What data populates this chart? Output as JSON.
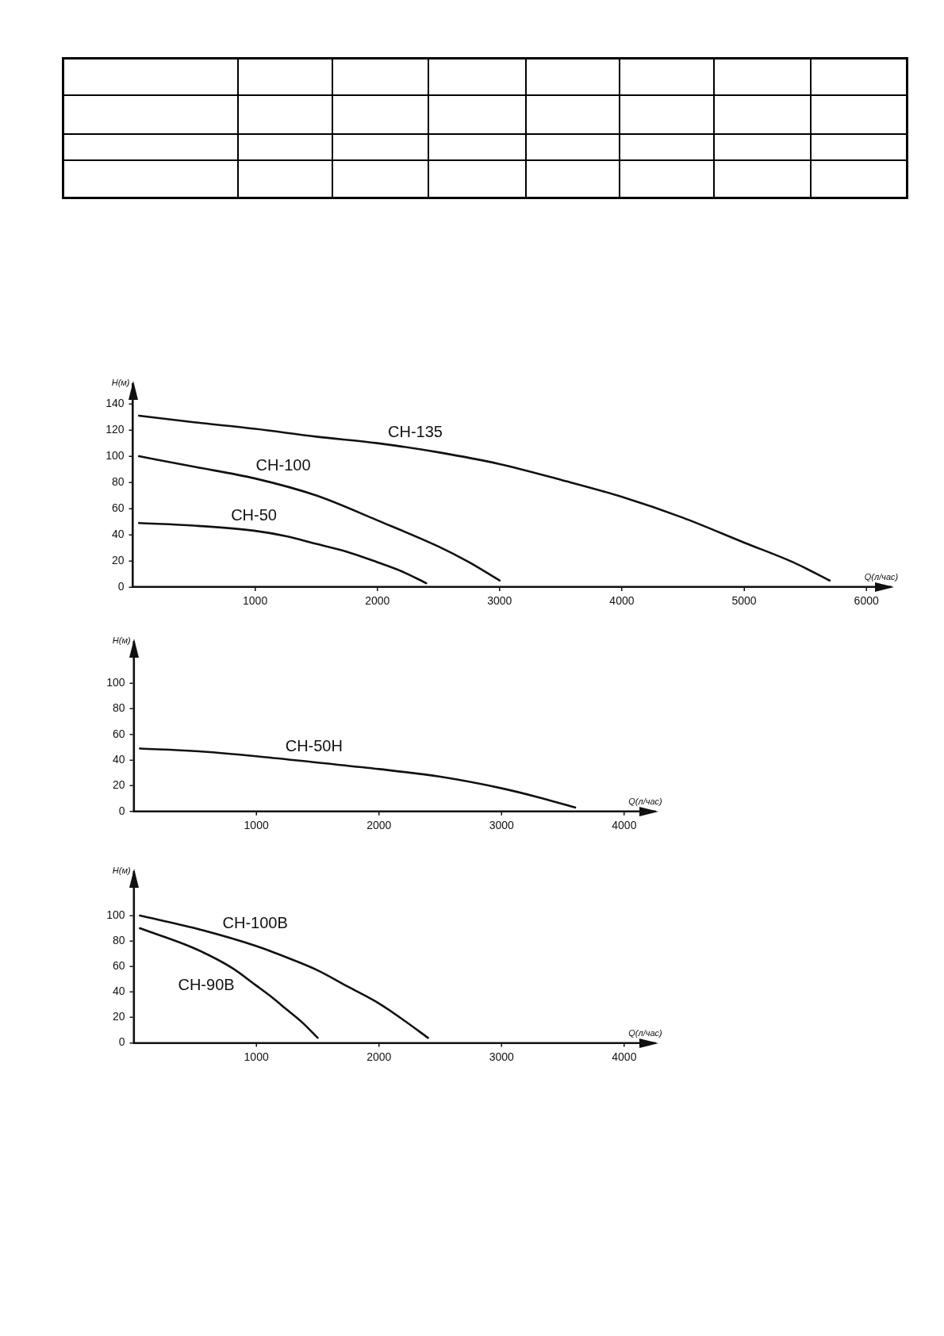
{
  "chart_data": [
    {
      "type": "line",
      "xlabel": "Q(л/час)",
      "ylabel": "H(м)",
      "xlim": [
        0,
        6200
      ],
      "ylim": [
        0,
        155
      ],
      "xticks": [
        1000,
        2000,
        3000,
        4000,
        5000,
        6000
      ],
      "yticks": [
        0,
        20,
        40,
        60,
        80,
        100,
        120,
        140
      ],
      "series": [
        {
          "name": "СН-135",
          "color": "#111111",
          "x": [
            50,
            500,
            1000,
            1500,
            2000,
            2500,
            3000,
            3500,
            4000,
            4500,
            5000,
            5400,
            5700
          ],
          "values": [
            131,
            126,
            121,
            115,
            110,
            103,
            94,
            82,
            69,
            53,
            34,
            19,
            5
          ]
        },
        {
          "name": "СН-100",
          "color": "#111111",
          "x": [
            50,
            500,
            1000,
            1500,
            2000,
            2500,
            2750,
            3000
          ],
          "values": [
            100,
            92,
            83,
            70,
            51,
            31,
            19,
            5
          ]
        },
        {
          "name": "СН-50",
          "color": "#111111",
          "x": [
            50,
            500,
            1000,
            1250,
            1500,
            1750,
            2000,
            2200,
            2400
          ],
          "values": [
            49,
            47,
            43,
            39,
            33,
            27,
            19,
            12,
            3
          ]
        }
      ]
    },
    {
      "type": "line",
      "xlabel": "Q(л/час)",
      "ylabel": "H(м)",
      "xlim": [
        0,
        4250
      ],
      "ylim": [
        0,
        132
      ],
      "xticks": [
        1000,
        2000,
        3000,
        4000
      ],
      "yticks": [
        0,
        20,
        40,
        60,
        80,
        100
      ],
      "series": [
        {
          "name": "СН-50Н",
          "color": "#111111",
          "x": [
            50,
            500,
            1000,
            1500,
            2000,
            2500,
            3000,
            3300,
            3600
          ],
          "values": [
            49,
            47,
            43,
            38,
            33,
            27,
            18,
            11,
            3
          ]
        }
      ]
    },
    {
      "type": "line",
      "xlabel": "Q(л/час)",
      "ylabel": "H(м)",
      "xlim": [
        0,
        4250
      ],
      "ylim": [
        0,
        134
      ],
      "xticks": [
        1000,
        2000,
        3000,
        4000
      ],
      "yticks": [
        0,
        20,
        40,
        60,
        80,
        100
      ],
      "series": [
        {
          "name": "СН-100В",
          "color": "#111111",
          "x": [
            50,
            500,
            1000,
            1250,
            1500,
            1750,
            2000,
            2200,
            2400
          ],
          "values": [
            100,
            90,
            76,
            67,
            57,
            44,
            31,
            18,
            4
          ]
        },
        {
          "name": "СН-90В",
          "color": "#111111",
          "x": [
            50,
            500,
            800,
            1000,
            1125,
            1250,
            1375,
            1500
          ],
          "values": [
            90,
            74,
            59,
            45,
            36,
            26,
            16,
            4
          ]
        }
      ]
    }
  ]
}
